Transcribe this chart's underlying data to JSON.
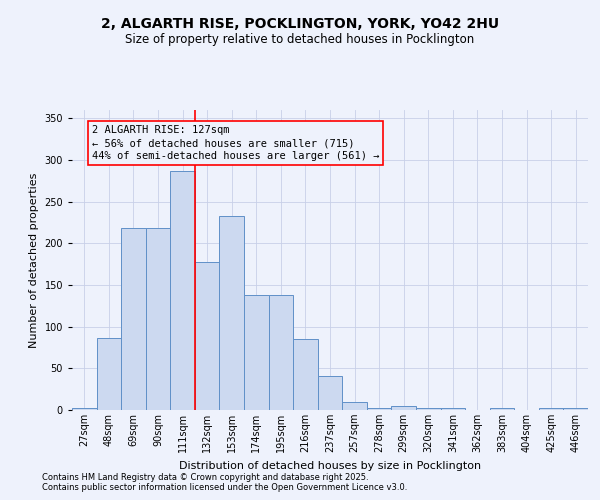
{
  "title_line1": "2, ALGARTH RISE, POCKLINGTON, YORK, YO42 2HU",
  "title_line2": "Size of property relative to detached houses in Pocklington",
  "xlabel": "Distribution of detached houses by size in Pocklington",
  "ylabel": "Number of detached properties",
  "bar_color": "#ccd9f0",
  "bar_edge_color": "#6090c8",
  "categories": [
    "27sqm",
    "48sqm",
    "69sqm",
    "90sqm",
    "111sqm",
    "132sqm",
    "153sqm",
    "174sqm",
    "195sqm",
    "216sqm",
    "237sqm",
    "257sqm",
    "278sqm",
    "299sqm",
    "320sqm",
    "341sqm",
    "362sqm",
    "383sqm",
    "404sqm",
    "425sqm",
    "446sqm"
  ],
  "values": [
    2,
    86,
    219,
    219,
    287,
    178,
    233,
    138,
    138,
    85,
    41,
    10,
    3,
    5,
    3,
    2,
    0,
    3,
    0,
    2,
    2
  ],
  "red_line_index": 5,
  "annotation_text": "2 ALGARTH RISE: 127sqm\n← 56% of detached houses are smaller (715)\n44% of semi-detached houses are larger (561) →",
  "ylim": [
    0,
    360
  ],
  "yticks": [
    0,
    50,
    100,
    150,
    200,
    250,
    300,
    350
  ],
  "footnote1": "Contains HM Land Registry data © Crown copyright and database right 2025.",
  "footnote2": "Contains public sector information licensed under the Open Government Licence v3.0.",
  "background_color": "#eef2fc",
  "grid_color": "#c8d0e8",
  "title_fontsize": 10,
  "subtitle_fontsize": 8.5,
  "ylabel_fontsize": 8,
  "xlabel_fontsize": 8,
  "tick_fontsize": 7,
  "footnote_fontsize": 6,
  "annotation_fontsize": 7.5
}
